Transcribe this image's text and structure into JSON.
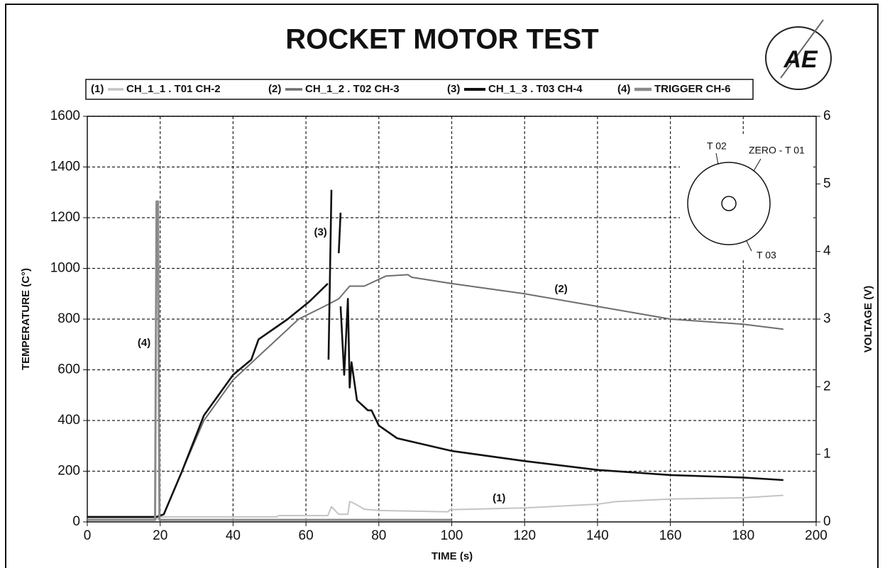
{
  "chart_data": {
    "type": "line",
    "title": "ROCKET MOTOR TEST",
    "logo_text": "AE",
    "x_label": "TIME (s)",
    "y_label": "TEMPERATURE (C°)",
    "y2_label": "VOLTAGE (V)",
    "xlim": [
      0,
      200
    ],
    "xticks": [
      0,
      20,
      40,
      60,
      80,
      100,
      120,
      140,
      160,
      180,
      200
    ],
    "ylim": [
      0,
      1600
    ],
    "yticks": [
      0,
      200,
      400,
      600,
      800,
      1000,
      1200,
      1400,
      1600
    ],
    "y2lim": [
      0,
      6
    ],
    "y2ticks": [
      0,
      1,
      2,
      3,
      4,
      5,
      6
    ],
    "grid": true,
    "legend": "top",
    "series": [
      {
        "name": "CH_1_1 . T01 CH-2",
        "color": "#c4c4c4",
        "x": [
          0,
          19,
          20,
          52,
          52.5,
          66,
          67,
          68,
          69,
          71.5,
          72,
          73,
          76,
          80,
          99,
          99.5,
          120,
          140,
          145,
          160,
          180,
          191
        ],
        "values": [
          10,
          10,
          20,
          20,
          25,
          25,
          60,
          45,
          30,
          30,
          80,
          75,
          50,
          45,
          40,
          48,
          55,
          70,
          80,
          90,
          95,
          105
        ]
      },
      {
        "name": "CH_1_2 . T02 CH-3",
        "color": "#6e6e6e",
        "x": [
          0,
          19,
          21,
          26,
          32,
          40,
          46,
          52,
          58,
          65,
          69,
          72,
          76,
          82,
          88,
          89,
          100,
          120,
          140,
          160,
          180,
          191
        ],
        "values": [
          18,
          18,
          30,
          200,
          400,
          560,
          640,
          720,
          800,
          850,
          880,
          930,
          930,
          970,
          975,
          965,
          940,
          900,
          850,
          800,
          780,
          760
        ]
      },
      {
        "name": "CH_1_3 . T03 CH-4",
        "color": "#111111",
        "x": [
          0,
          19,
          21,
          26,
          32,
          40,
          45,
          47,
          55,
          61,
          66,
          null,
          66.2,
          67,
          null,
          69,
          69.5,
          null,
          69.5,
          70.5,
          71.5,
          72,
          72.5,
          74,
          77,
          78,
          80,
          85,
          100,
          120,
          140,
          160,
          180,
          191
        ],
        "values": [
          20,
          20,
          30,
          200,
          420,
          580,
          640,
          720,
          800,
          870,
          940,
          null,
          640,
          1310,
          null,
          1060,
          1220,
          null,
          850,
          580,
          880,
          530,
          630,
          480,
          440,
          440,
          380,
          330,
          280,
          240,
          205,
          185,
          175,
          165
        ]
      },
      {
        "name": "TRIGGER CH-6",
        "color": "#8a8a8a",
        "axis": "y2",
        "x": [
          0,
          18.6,
          19,
          19.4,
          19.8,
          20,
          100
        ],
        "values": [
          0.03,
          0.03,
          4.74,
          4.74,
          0.03,
          0.03,
          0.03
        ]
      }
    ],
    "annotations": [
      {
        "text": "(1)",
        "x": 113,
        "y": 92
      },
      {
        "text": "(2)",
        "x": 130,
        "y": 917
      },
      {
        "text": "(3)",
        "x": 64,
        "y": 1141
      },
      {
        "text": "(4)",
        "x": 15.6,
        "y": 705
      }
    ],
    "inset": {
      "labels": [
        "T 02",
        "ZERO - T 01",
        "T 03"
      ]
    }
  }
}
